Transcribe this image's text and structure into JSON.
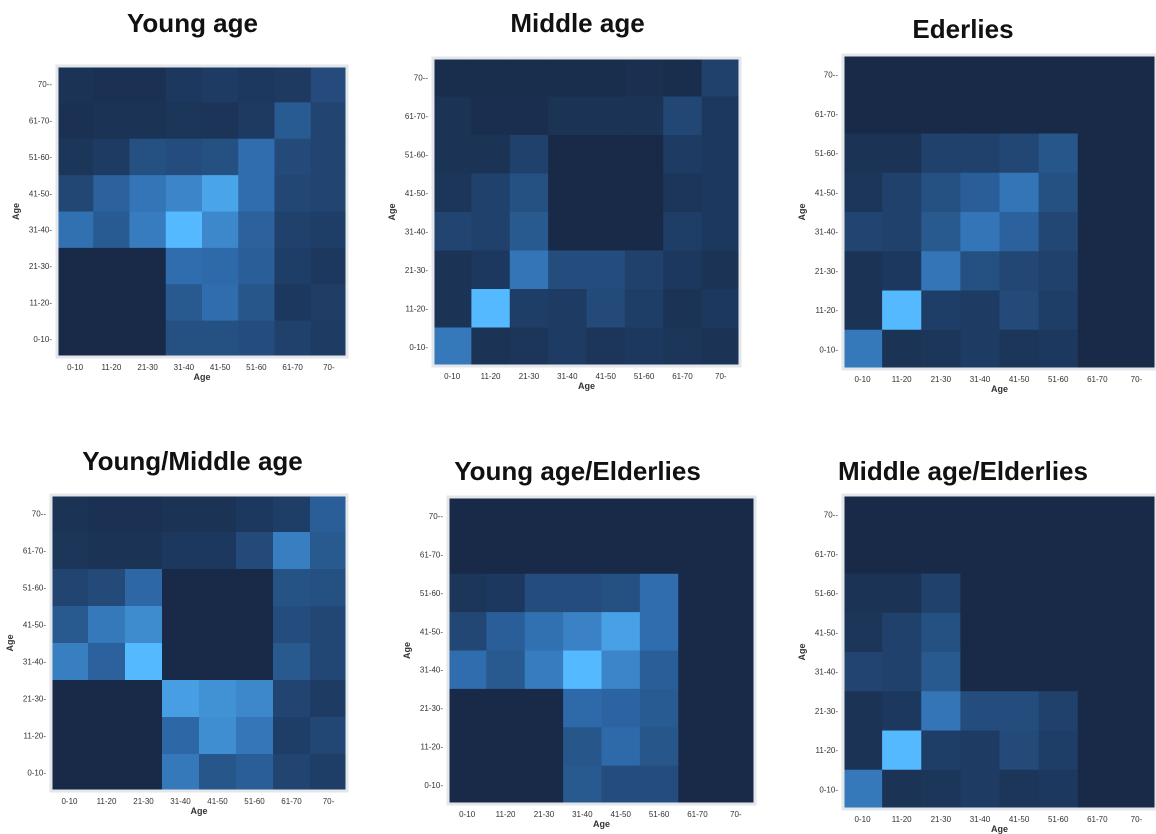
{
  "chart_data": [
    {
      "type": "heatmap",
      "title": "Young age",
      "xlabel": "Age",
      "ylabel": "Age",
      "categories": [
        "0-10",
        "11-20",
        "21-30",
        "31-40",
        "41-50",
        "51-60",
        "61-70",
        "70-"
      ],
      "values": [
        [
          0.1,
          0.09,
          0.09,
          0.14,
          0.16,
          0.14,
          0.15,
          0.27
        ],
        [
          0.09,
          0.1,
          0.1,
          0.12,
          0.11,
          0.15,
          0.38,
          0.22
        ],
        [
          0.12,
          0.16,
          0.3,
          0.28,
          0.3,
          0.5,
          0.26,
          0.22
        ],
        [
          0.24,
          0.42,
          0.55,
          0.66,
          0.86,
          0.5,
          0.24,
          0.22
        ],
        [
          0.52,
          0.38,
          0.6,
          1.0,
          0.68,
          0.42,
          0.2,
          0.18
        ],
        [
          0.04,
          0.04,
          0.04,
          0.5,
          0.48,
          0.4,
          0.18,
          0.14
        ],
        [
          0.04,
          0.04,
          0.04,
          0.36,
          0.5,
          0.34,
          0.14,
          0.17
        ],
        [
          0.04,
          0.04,
          0.04,
          0.3,
          0.3,
          0.28,
          0.2,
          0.16
        ]
      ]
    },
    {
      "type": "heatmap",
      "title": "Middle age",
      "xlabel": "Age",
      "ylabel": "Age",
      "categories": [
        "0-10",
        "11-20",
        "21-30",
        "31-40",
        "41-50",
        "51-60",
        "61-70",
        "70-"
      ],
      "values": [
        [
          0.06,
          0.06,
          0.06,
          0.06,
          0.06,
          0.08,
          0.06,
          0.2
        ],
        [
          0.1,
          0.07,
          0.07,
          0.1,
          0.1,
          0.1,
          0.24,
          0.14
        ],
        [
          0.1,
          0.1,
          0.2,
          0.04,
          0.04,
          0.04,
          0.16,
          0.14
        ],
        [
          0.12,
          0.2,
          0.3,
          0.04,
          0.04,
          0.04,
          0.12,
          0.14
        ],
        [
          0.22,
          0.2,
          0.36,
          0.04,
          0.04,
          0.04,
          0.18,
          0.14
        ],
        [
          0.1,
          0.14,
          0.55,
          0.28,
          0.28,
          0.2,
          0.14,
          0.1
        ],
        [
          0.1,
          1.0,
          0.18,
          0.16,
          0.26,
          0.18,
          0.1,
          0.14
        ],
        [
          0.58,
          0.1,
          0.12,
          0.16,
          0.12,
          0.14,
          0.12,
          0.1
        ]
      ]
    },
    {
      "type": "heatmap",
      "title": "Ederlies",
      "xlabel": "Age",
      "ylabel": "Age",
      "categories": [
        "0-10",
        "11-20",
        "21-30",
        "31-40",
        "41-50",
        "51-60",
        "61-70",
        "70-"
      ],
      "values": [
        [
          0.04,
          0.04,
          0.04,
          0.04,
          0.04,
          0.04,
          0.04,
          0.04
        ],
        [
          0.04,
          0.04,
          0.04,
          0.04,
          0.04,
          0.04,
          0.04,
          0.04
        ],
        [
          0.1,
          0.1,
          0.2,
          0.2,
          0.24,
          0.34,
          0.04,
          0.04
        ],
        [
          0.12,
          0.2,
          0.3,
          0.4,
          0.55,
          0.3,
          0.04,
          0.04
        ],
        [
          0.22,
          0.2,
          0.36,
          0.55,
          0.42,
          0.24,
          0.04,
          0.04
        ],
        [
          0.1,
          0.14,
          0.55,
          0.3,
          0.24,
          0.2,
          0.04,
          0.04
        ],
        [
          0.1,
          1.0,
          0.18,
          0.16,
          0.26,
          0.18,
          0.04,
          0.04
        ],
        [
          0.58,
          0.1,
          0.12,
          0.16,
          0.12,
          0.14,
          0.04,
          0.04
        ]
      ]
    },
    {
      "type": "heatmap",
      "title": "Young/Middle age",
      "xlabel": "Age",
      "ylabel": "Age",
      "categories": [
        "0-10",
        "11-20",
        "21-30",
        "31-40",
        "41-50",
        "51-60",
        "61-70",
        "70-"
      ],
      "values": [
        [
          0.1,
          0.09,
          0.09,
          0.1,
          0.1,
          0.14,
          0.18,
          0.4
        ],
        [
          0.12,
          0.1,
          0.1,
          0.14,
          0.14,
          0.26,
          0.62,
          0.36
        ],
        [
          0.22,
          0.26,
          0.46,
          0.04,
          0.04,
          0.04,
          0.32,
          0.3
        ],
        [
          0.36,
          0.58,
          0.7,
          0.04,
          0.04,
          0.04,
          0.28,
          0.24
        ],
        [
          0.62,
          0.42,
          1.0,
          0.04,
          0.04,
          0.04,
          0.36,
          0.24
        ],
        [
          0.04,
          0.04,
          0.04,
          0.82,
          0.74,
          0.68,
          0.22,
          0.16
        ],
        [
          0.04,
          0.04,
          0.04,
          0.46,
          0.72,
          0.56,
          0.18,
          0.24
        ],
        [
          0.04,
          0.04,
          0.04,
          0.58,
          0.34,
          0.4,
          0.22,
          0.18
        ]
      ]
    },
    {
      "type": "heatmap",
      "title": "Young age/Elderlies",
      "xlabel": "Age",
      "ylabel": "Age",
      "categories": [
        "0-10",
        "11-20",
        "21-30",
        "31-40",
        "41-50",
        "51-60",
        "61-70",
        "70-"
      ],
      "values": [
        [
          0.04,
          0.04,
          0.04,
          0.04,
          0.04,
          0.04,
          0.04,
          0.04
        ],
        [
          0.04,
          0.04,
          0.04,
          0.04,
          0.04,
          0.04,
          0.04,
          0.04
        ],
        [
          0.12,
          0.14,
          0.28,
          0.28,
          0.3,
          0.5,
          0.04,
          0.04
        ],
        [
          0.24,
          0.4,
          0.52,
          0.64,
          0.84,
          0.5,
          0.04,
          0.04
        ],
        [
          0.5,
          0.36,
          0.6,
          1.0,
          0.66,
          0.4,
          0.04,
          0.04
        ],
        [
          0.04,
          0.04,
          0.04,
          0.48,
          0.44,
          0.38,
          0.04,
          0.04
        ],
        [
          0.04,
          0.04,
          0.04,
          0.34,
          0.48,
          0.34,
          0.04,
          0.04
        ],
        [
          0.04,
          0.04,
          0.04,
          0.36,
          0.28,
          0.28,
          0.04,
          0.04
        ]
      ]
    },
    {
      "type": "heatmap",
      "title": "Middle age/Elderlies",
      "xlabel": "Age",
      "ylabel": "Age",
      "categories": [
        "0-10",
        "11-20",
        "21-30",
        "31-40",
        "41-50",
        "51-60",
        "61-70",
        "70-"
      ],
      "values": [
        [
          0.04,
          0.04,
          0.04,
          0.04,
          0.04,
          0.04,
          0.04,
          0.04
        ],
        [
          0.04,
          0.04,
          0.04,
          0.04,
          0.04,
          0.04,
          0.04,
          0.04
        ],
        [
          0.1,
          0.1,
          0.2,
          0.04,
          0.04,
          0.04,
          0.04,
          0.04
        ],
        [
          0.12,
          0.2,
          0.3,
          0.04,
          0.04,
          0.04,
          0.04,
          0.04
        ],
        [
          0.22,
          0.2,
          0.36,
          0.04,
          0.04,
          0.04,
          0.04,
          0.04
        ],
        [
          0.1,
          0.14,
          0.55,
          0.28,
          0.28,
          0.2,
          0.04,
          0.04
        ],
        [
          0.1,
          1.0,
          0.18,
          0.16,
          0.26,
          0.18,
          0.04,
          0.04
        ],
        [
          0.58,
          0.1,
          0.12,
          0.16,
          0.12,
          0.14,
          0.04,
          0.04
        ]
      ]
    }
  ],
  "colors": {
    "low": "#16243f",
    "mid": "#2f6dae",
    "high": "#55b9ff"
  }
}
